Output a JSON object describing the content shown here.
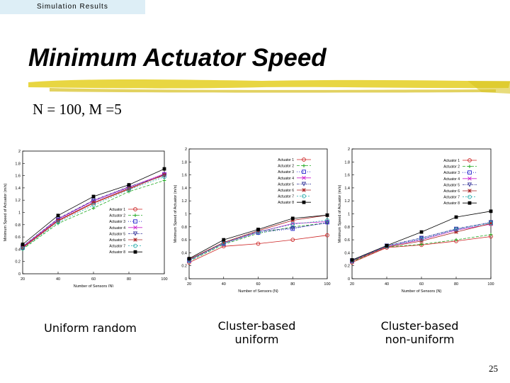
{
  "section_label": "Simulation Results",
  "title": "Minimum Actuator Speed",
  "subtitle": "N = 100, M =5",
  "page_number": "25",
  "colors": {
    "accent_brush": "#e6d12e",
    "series": [
      "#cc2222",
      "#22aa22",
      "#2222cc",
      "#cc22cc",
      "#333399",
      "#aa2222",
      "#22aaaa",
      "#000000"
    ]
  },
  "captions": [
    {
      "lines": [
        "Uniform random"
      ]
    },
    {
      "lines": [
        "Cluster-based",
        "uniform"
      ]
    },
    {
      "lines": [
        "Cluster-based",
        "non-uniform"
      ]
    }
  ],
  "chart_data": [
    {
      "type": "line",
      "title": "Uniform random",
      "xlabel": "Number of Sensors (N)",
      "ylabel": "Minimum Speed of Actuator (m/s)",
      "x": [
        20,
        40,
        60,
        80,
        100
      ],
      "xlim": [
        20,
        100
      ],
      "ylim": [
        0,
        2
      ],
      "xticks": [
        "20",
        "40",
        "60",
        "80",
        "100"
      ],
      "yticks": [
        "0",
        "0.2",
        "0.4",
        "0.6",
        "0.8",
        "1",
        "1.2",
        "1.4",
        "1.6",
        "1.8",
        "2"
      ],
      "legend_position": "lower-right",
      "series": [
        {
          "name": "Actuator 1",
          "values": [
            0.42,
            0.86,
            1.15,
            1.38,
            1.62
          ]
        },
        {
          "name": "Actuator 2",
          "values": [
            0.4,
            0.82,
            1.07,
            1.34,
            1.52
          ]
        },
        {
          "name": "Actuator 3",
          "values": [
            0.43,
            0.88,
            1.18,
            1.4,
            1.62
          ]
        },
        {
          "name": "Actuator 4",
          "values": [
            0.44,
            0.89,
            1.19,
            1.41,
            1.63
          ]
        },
        {
          "name": "Actuator 5",
          "values": [
            0.45,
            0.9,
            1.2,
            1.42,
            1.6
          ]
        },
        {
          "name": "Actuator 6",
          "values": [
            0.43,
            0.87,
            1.16,
            1.39,
            1.61
          ]
        },
        {
          "name": "Actuator 7",
          "values": [
            0.41,
            0.84,
            1.12,
            1.37,
            1.58
          ]
        },
        {
          "name": "Actuator 8",
          "values": [
            0.48,
            0.95,
            1.26,
            1.45,
            1.71
          ]
        }
      ]
    },
    {
      "type": "line",
      "title": "Cluster-based uniform",
      "xlabel": "Number of Sensors (N)",
      "ylabel": "Minimum Speed of Actuator (m/s)",
      "x": [
        20,
        40,
        60,
        80,
        100
      ],
      "xlim": [
        20,
        100
      ],
      "ylim": [
        0,
        2
      ],
      "xticks": [
        "20",
        "40",
        "60",
        "80",
        "100"
      ],
      "yticks": [
        "0",
        "0.2",
        "0.4",
        "0.6",
        "0.8",
        "1",
        "1.2",
        "1.4",
        "1.6",
        "1.8",
        "2"
      ],
      "legend_position": "top-right",
      "series": [
        {
          "name": "Actuator 1",
          "values": [
            0.25,
            0.5,
            0.54,
            0.6,
            0.67
          ]
        },
        {
          "name": "Actuator 2",
          "values": [
            0.27,
            0.53,
            0.7,
            0.8,
            0.86
          ]
        },
        {
          "name": "Actuator 3",
          "values": [
            0.28,
            0.54,
            0.71,
            0.77,
            0.87
          ]
        },
        {
          "name": "Actuator 4",
          "values": [
            0.29,
            0.55,
            0.72,
            0.85,
            0.88
          ]
        },
        {
          "name": "Actuator 5",
          "values": [
            0.29,
            0.55,
            0.73,
            0.78,
            0.86
          ]
        },
        {
          "name": "Actuator 6",
          "values": [
            0.3,
            0.56,
            0.74,
            0.9,
            0.98
          ]
        },
        {
          "name": "Actuator 7",
          "values": [
            0.29,
            0.55,
            0.72,
            0.84,
            0.9
          ]
        },
        {
          "name": "Actuator 8",
          "values": [
            0.31,
            0.6,
            0.76,
            0.93,
            0.98
          ]
        }
      ]
    },
    {
      "type": "line",
      "title": "Cluster-based non-uniform",
      "xlabel": "Number of Sensors (N)",
      "ylabel": "Minimum Speed of Actuator (m/s)",
      "x": [
        20,
        40,
        60,
        80,
        100
      ],
      "xlim": [
        20,
        100
      ],
      "ylim": [
        0,
        2
      ],
      "xticks": [
        "20",
        "40",
        "60",
        "80",
        "100"
      ],
      "yticks": [
        "0",
        "0.2",
        "0.4",
        "0.6",
        "0.8",
        "1",
        "1.2",
        "1.4",
        "1.6",
        "1.8",
        "2"
      ],
      "legend_position": "top-right",
      "series": [
        {
          "name": "Actuator 1",
          "values": [
            0.25,
            0.48,
            0.52,
            0.58,
            0.65
          ]
        },
        {
          "name": "Actuator 2",
          "values": [
            0.26,
            0.49,
            0.53,
            0.6,
            0.68
          ]
        },
        {
          "name": "Actuator 3",
          "values": [
            0.27,
            0.5,
            0.62,
            0.76,
            0.86
          ]
        },
        {
          "name": "Actuator 4",
          "values": [
            0.28,
            0.5,
            0.6,
            0.75,
            0.84
          ]
        },
        {
          "name": "Actuator 5",
          "values": [
            0.28,
            0.51,
            0.63,
            0.77,
            0.87
          ]
        },
        {
          "name": "Actuator 6",
          "values": [
            0.27,
            0.49,
            0.58,
            0.72,
            0.85
          ]
        },
        {
          "name": "Actuator 7",
          "values": [
            0.28,
            0.5,
            0.61,
            0.76,
            0.86
          ]
        },
        {
          "name": "Actuator 8",
          "values": [
            0.29,
            0.51,
            0.72,
            0.95,
            1.04
          ]
        }
      ]
    }
  ]
}
